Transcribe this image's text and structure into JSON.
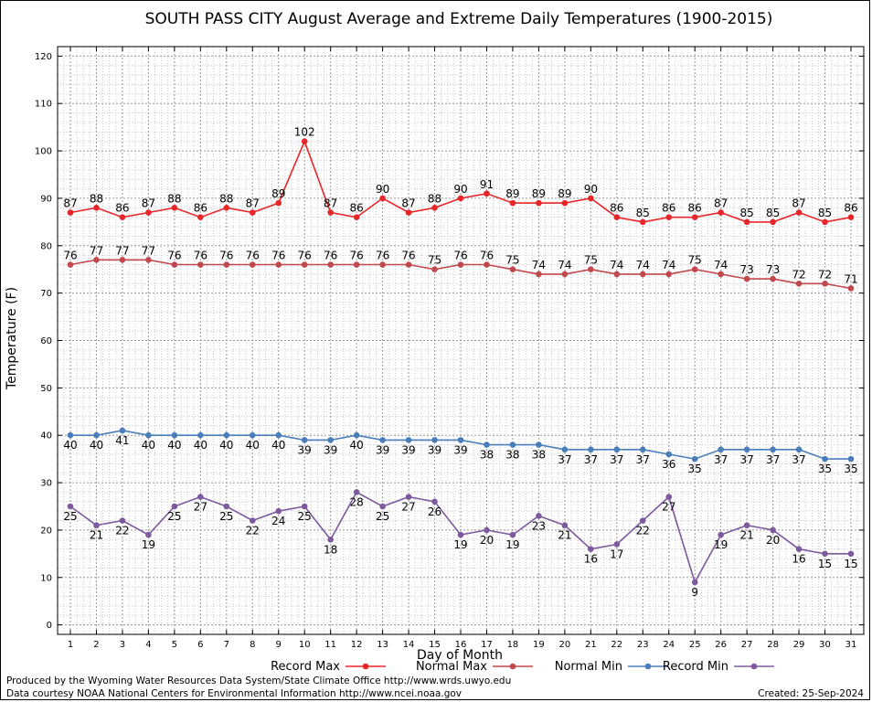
{
  "chart_data": {
    "type": "line",
    "title": "SOUTH PASS CITY August Average and Extreme Daily Temperatures (1900-2015)",
    "xlabel": "Day of Month",
    "ylabel": "Temperature (F)",
    "ylim": [
      -2,
      122
    ],
    "yticks": [
      0,
      10,
      20,
      30,
      40,
      50,
      60,
      70,
      80,
      90,
      100,
      110,
      120
    ],
    "grid": true,
    "legend_position": "bottom",
    "x": [
      1,
      2,
      3,
      4,
      5,
      6,
      7,
      8,
      9,
      10,
      11,
      12,
      13,
      14,
      15,
      16,
      17,
      18,
      19,
      20,
      21,
      22,
      23,
      24,
      25,
      26,
      27,
      28,
      29,
      30,
      31
    ],
    "series": [
      {
        "name": "Record Max",
        "color": "#e8262a",
        "label_position": "above",
        "values": [
          87,
          88,
          86,
          87,
          88,
          86,
          88,
          87,
          89,
          102,
          87,
          86,
          90,
          87,
          88,
          90,
          91,
          89,
          89,
          89,
          90,
          86,
          85,
          86,
          86,
          87,
          85,
          85,
          87,
          85,
          86
        ]
      },
      {
        "name": "Normal Max",
        "color": "#c1484d",
        "label_position": "above",
        "values": [
          76,
          77,
          77,
          77,
          76,
          76,
          76,
          76,
          76,
          76,
          76,
          76,
          76,
          76,
          75,
          76,
          76,
          75,
          74,
          74,
          75,
          74,
          74,
          74,
          75,
          74,
          73,
          73,
          72,
          72,
          71
        ]
      },
      {
        "name": "Normal Min",
        "color": "#4a7ebb",
        "label_position": "below",
        "values": [
          40,
          40,
          41,
          40,
          40,
          40,
          40,
          40,
          40,
          39,
          39,
          40,
          39,
          39,
          39,
          39,
          38,
          38,
          38,
          37,
          37,
          37,
          37,
          36,
          35,
          37,
          37,
          37,
          37,
          35,
          35
        ]
      },
      {
        "name": "Record Min",
        "color": "#7d5a9e",
        "label_position": "below",
        "values": [
          25,
          21,
          22,
          19,
          25,
          27,
          25,
          22,
          24,
          25,
          18,
          28,
          25,
          27,
          26,
          19,
          20,
          19,
          23,
          21,
          16,
          17,
          22,
          27,
          9,
          19,
          21,
          20,
          16,
          15,
          15
        ]
      }
    ]
  },
  "footer": {
    "line1": "Produced by the Wyoming Water Resources Data System/State Climate Office http://www.wrds.uwyo.edu",
    "line2": "Data courtesy NOAA National Centers for Environmental Information http://www.ncei.noaa.gov",
    "created": "Created:  25-Sep-2024"
  }
}
